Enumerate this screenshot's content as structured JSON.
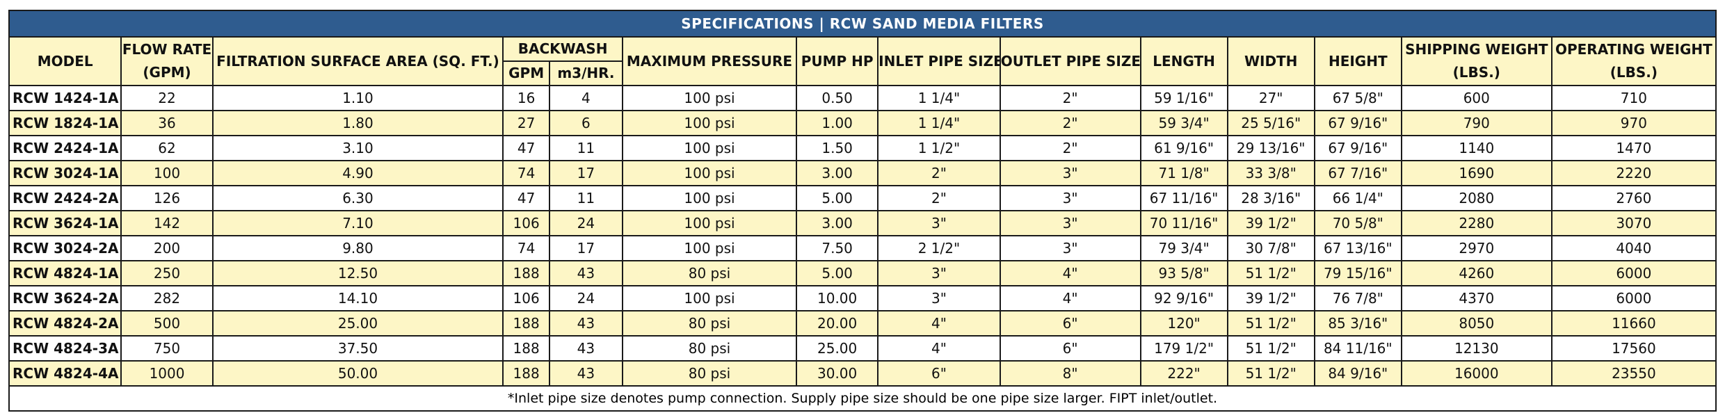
{
  "title": "SPECIFICATIONS | RCW SAND MEDIA FILTERS",
  "headers": {
    "model": "MODEL",
    "flow_rate": "FLOW RATE",
    "flow_rate_unit": "(GPM)",
    "filtration_area": "FILTRATION SURFACE AREA (SQ. FT.)",
    "backwash": "BACKWASH",
    "backwash_gpm": "GPM",
    "backwash_m3": "m3/HR.",
    "max_pressure": "MAXIMUM PRESSURE",
    "pump_hp": "PUMP HP",
    "inlet_pipe": "INLET PIPE SIZE",
    "outlet_pipe": "OUTLET PIPE SIZE",
    "length": "LENGTH",
    "width": "WIDTH",
    "height": "HEIGHT",
    "shipping_weight": "SHIPPING WEIGHT",
    "shipping_weight_unit": "(LBS.)",
    "operating_weight": "OPERATING WEIGHT",
    "operating_weight_unit": "(LBS.)"
  },
  "rows": [
    [
      "RCW 1424-1A",
      "22",
      "1.10",
      "16",
      "4",
      "100 psi",
      "0.50",
      "1 1/4\"",
      "2\"",
      "59 1/16\"",
      "27\"",
      "67 5/8\"",
      "600",
      "710"
    ],
    [
      "RCW 1824-1A",
      "36",
      "1.80",
      "27",
      "6",
      "100 psi",
      "1.00",
      "1 1/4\"",
      "2\"",
      "59 3/4\"",
      "25 5/16\"",
      "67 9/16\"",
      "790",
      "970"
    ],
    [
      "RCW 2424-1A",
      "62",
      "3.10",
      "47",
      "11",
      "100 psi",
      "1.50",
      "1 1/2\"",
      "2\"",
      "61 9/16\"",
      "29 13/16\"",
      "67 9/16\"",
      "1140",
      "1470"
    ],
    [
      "RCW 3024-1A",
      "100",
      "4.90",
      "74",
      "17",
      "100 psi",
      "3.00",
      "2\"",
      "3\"",
      "71 1/8\"",
      "33 3/8\"",
      "67 7/16\"",
      "1690",
      "2220"
    ],
    [
      "RCW 2424-2A",
      "126",
      "6.30",
      "47",
      "11",
      "100 psi",
      "5.00",
      "2\"",
      "3\"",
      "67 11/16\"",
      "28 3/16\"",
      "66 1/4\"",
      "2080",
      "2760"
    ],
    [
      "RCW 3624-1A",
      "142",
      "7.10",
      "106",
      "24",
      "100 psi",
      "3.00",
      "3\"",
      "3\"",
      "70 11/16\"",
      "39 1/2\"",
      "70 5/8\"",
      "2280",
      "3070"
    ],
    [
      "RCW 3024-2A",
      "200",
      "9.80",
      "74",
      "17",
      "100 psi",
      "7.50",
      "2 1/2\"",
      "3\"",
      "79 3/4\"",
      "30 7/8\"",
      "67 13/16\"",
      "2970",
      "4040"
    ],
    [
      "RCW 4824-1A",
      "250",
      "12.50",
      "188",
      "43",
      "80 psi",
      "5.00",
      "3\"",
      "4\"",
      "93 5/8\"",
      "51 1/2\"",
      "79 15/16\"",
      "4260",
      "6000"
    ],
    [
      "RCW 3624-2A",
      "282",
      "14.10",
      "106",
      "24",
      "100 psi",
      "10.00",
      "3\"",
      "4\"",
      "92 9/16\"",
      "39 1/2\"",
      "76 7/8\"",
      "4370",
      "6000"
    ],
    [
      "RCW 4824-2A",
      "500",
      "25.00",
      "188",
      "43",
      "80 psi",
      "20.00",
      "4\"",
      "6\"",
      "120\"",
      "51 1/2\"",
      "85 3/16\"",
      "8050",
      "11660"
    ],
    [
      "RCW 4824-3A",
      "750",
      "37.50",
      "188",
      "43",
      "80 psi",
      "25.00",
      "4\"",
      "6\"",
      "179 1/2\"",
      "51 1/2\"",
      "84 11/16\"",
      "12130",
      "17560"
    ],
    [
      "RCW 4824-4A",
      "1000",
      "50.00",
      "188",
      "43",
      "80 psi",
      "30.00",
      "6\"",
      "8\"",
      "222\"",
      "51 1/2\"",
      "84 9/16\"",
      "16000",
      "23550"
    ]
  ],
  "footnote": "*Inlet pipe size denotes pump connection. Supply pipe size should be one pipe size larger. FIPT inlet/outlet.",
  "colors": {
    "title_bg": "#2f5c8f",
    "title_text": "#ffffff",
    "highlight_row": "#fdf6c6",
    "border": "#1a1a1a"
  }
}
